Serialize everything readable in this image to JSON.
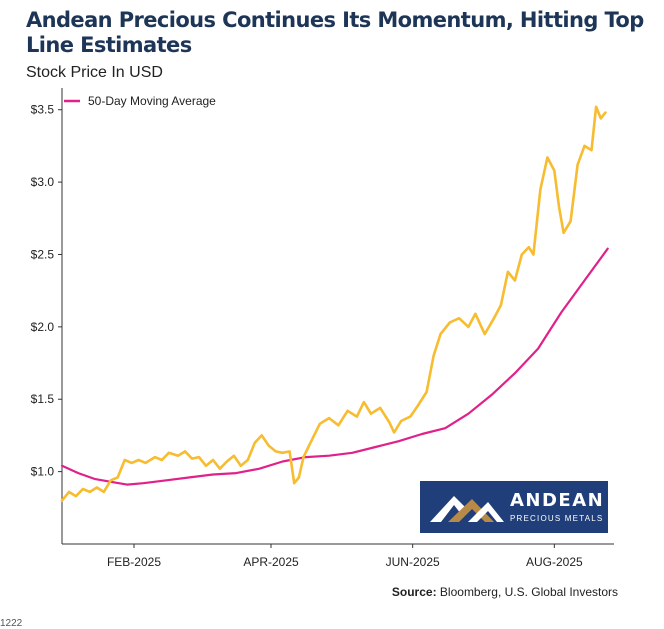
{
  "header": {
    "title": "Andean Precious Continues Its Momentum, Hitting Top Line Estimates",
    "subtitle": "Stock Price In USD"
  },
  "legend": {
    "label": "50-Day Moving Average"
  },
  "source": {
    "prefix": "Source:",
    "text": "Bloomberg, U.S. Global Investors"
  },
  "logo": {
    "name": "ANDEAN",
    "tagline": "PRECIOUS METALS"
  },
  "footer_cut_text": "1222",
  "colors": {
    "price": "#f7bc2f",
    "moving_average": "#e0218a",
    "logo_bg": "#1f3e7a",
    "title": "#1d3557"
  },
  "chart_data": {
    "type": "line",
    "title": "Andean Precious Continues Its Momentum, Hitting Top Line Estimates",
    "ylabel": "Stock Price In USD",
    "xlabel": "",
    "ylim": [
      0.5,
      3.65
    ],
    "yticks": [
      1.0,
      1.5,
      2.0,
      2.5,
      3.0,
      3.5
    ],
    "ytick_labels": [
      "$1.0",
      "$1.5",
      "$2.0",
      "$2.5",
      "$3.0",
      "$3.5"
    ],
    "xlim": [
      "2025-01-01",
      "2025-08-31"
    ],
    "xticks": [
      "2025-02-01",
      "2025-04-01",
      "2025-06-01",
      "2025-08-01"
    ],
    "xtick_labels": [
      "FEB-2025",
      "APR-2025",
      "JUN-2025",
      "AUG-2025"
    ],
    "legend_position": "top-left",
    "grid": false,
    "series": [
      {
        "name": "",
        "role": "price",
        "points": [
          [
            "2025-01-01",
            0.8
          ],
          [
            "2025-01-04",
            0.86
          ],
          [
            "2025-01-07",
            0.83
          ],
          [
            "2025-01-10",
            0.88
          ],
          [
            "2025-01-13",
            0.86
          ],
          [
            "2025-01-16",
            0.89
          ],
          [
            "2025-01-19",
            0.86
          ],
          [
            "2025-01-22",
            0.94
          ],
          [
            "2025-01-25",
            0.96
          ],
          [
            "2025-01-28",
            1.08
          ],
          [
            "2025-01-31",
            1.06
          ],
          [
            "2025-02-03",
            1.08
          ],
          [
            "2025-02-06",
            1.06
          ],
          [
            "2025-02-10",
            1.1
          ],
          [
            "2025-02-13",
            1.08
          ],
          [
            "2025-02-16",
            1.13
          ],
          [
            "2025-02-20",
            1.11
          ],
          [
            "2025-02-23",
            1.14
          ],
          [
            "2025-02-26",
            1.09
          ],
          [
            "2025-03-01",
            1.1
          ],
          [
            "2025-03-04",
            1.04
          ],
          [
            "2025-03-07",
            1.08
          ],
          [
            "2025-03-10",
            1.02
          ],
          [
            "2025-03-13",
            1.07
          ],
          [
            "2025-03-16",
            1.11
          ],
          [
            "2025-03-19",
            1.04
          ],
          [
            "2025-03-22",
            1.08
          ],
          [
            "2025-03-25",
            1.2
          ],
          [
            "2025-03-28",
            1.25
          ],
          [
            "2025-03-31",
            1.18
          ],
          [
            "2025-04-03",
            1.14
          ],
          [
            "2025-04-06",
            1.13
          ],
          [
            "2025-04-09",
            1.14
          ],
          [
            "2025-04-11",
            0.92
          ],
          [
            "2025-04-13",
            0.96
          ],
          [
            "2025-04-15",
            1.1
          ],
          [
            "2025-04-18",
            1.2
          ],
          [
            "2025-04-22",
            1.33
          ],
          [
            "2025-04-26",
            1.37
          ],
          [
            "2025-04-30",
            1.32
          ],
          [
            "2025-05-04",
            1.42
          ],
          [
            "2025-05-08",
            1.38
          ],
          [
            "2025-05-11",
            1.48
          ],
          [
            "2025-05-14",
            1.4
          ],
          [
            "2025-05-18",
            1.44
          ],
          [
            "2025-05-22",
            1.34
          ],
          [
            "2025-05-24",
            1.27
          ],
          [
            "2025-05-27",
            1.35
          ],
          [
            "2025-05-31",
            1.38
          ],
          [
            "2025-06-03",
            1.45
          ],
          [
            "2025-06-07",
            1.55
          ],
          [
            "2025-06-10",
            1.8
          ],
          [
            "2025-06-13",
            1.95
          ],
          [
            "2025-06-17",
            2.03
          ],
          [
            "2025-06-21",
            2.06
          ],
          [
            "2025-06-25",
            2.0
          ],
          [
            "2025-06-28",
            2.09
          ],
          [
            "2025-07-02",
            1.95
          ],
          [
            "2025-07-06",
            2.06
          ],
          [
            "2025-07-09",
            2.15
          ],
          [
            "2025-07-12",
            2.38
          ],
          [
            "2025-07-15",
            2.32
          ],
          [
            "2025-07-18",
            2.5
          ],
          [
            "2025-07-21",
            2.55
          ],
          [
            "2025-07-23",
            2.5
          ],
          [
            "2025-07-26",
            2.95
          ],
          [
            "2025-07-29",
            3.17
          ],
          [
            "2025-08-01",
            3.08
          ],
          [
            "2025-08-03",
            2.83
          ],
          [
            "2025-08-05",
            2.65
          ],
          [
            "2025-08-08",
            2.73
          ],
          [
            "2025-08-11",
            3.12
          ],
          [
            "2025-08-14",
            3.25
          ],
          [
            "2025-08-17",
            3.22
          ],
          [
            "2025-08-19",
            3.52
          ],
          [
            "2025-08-21",
            3.44
          ],
          [
            "2025-08-23",
            3.48
          ]
        ]
      },
      {
        "name": "50-Day Moving Average",
        "role": "moving_average",
        "points": [
          [
            "2025-01-01",
            1.04
          ],
          [
            "2025-01-08",
            0.99
          ],
          [
            "2025-01-15",
            0.95
          ],
          [
            "2025-01-22",
            0.93
          ],
          [
            "2025-01-29",
            0.91
          ],
          [
            "2025-02-05",
            0.92
          ],
          [
            "2025-02-15",
            0.94
          ],
          [
            "2025-02-25",
            0.96
          ],
          [
            "2025-03-07",
            0.98
          ],
          [
            "2025-03-17",
            0.99
          ],
          [
            "2025-03-27",
            1.02
          ],
          [
            "2025-04-06",
            1.07
          ],
          [
            "2025-04-16",
            1.1
          ],
          [
            "2025-04-26",
            1.11
          ],
          [
            "2025-05-06",
            1.13
          ],
          [
            "2025-05-16",
            1.17
          ],
          [
            "2025-05-26",
            1.21
          ],
          [
            "2025-06-05",
            1.26
          ],
          [
            "2025-06-15",
            1.3
          ],
          [
            "2025-06-25",
            1.4
          ],
          [
            "2025-07-05",
            1.53
          ],
          [
            "2025-07-15",
            1.68
          ],
          [
            "2025-07-25",
            1.85
          ],
          [
            "2025-08-04",
            2.1
          ],
          [
            "2025-08-14",
            2.32
          ],
          [
            "2025-08-24",
            2.54
          ]
        ]
      }
    ]
  }
}
